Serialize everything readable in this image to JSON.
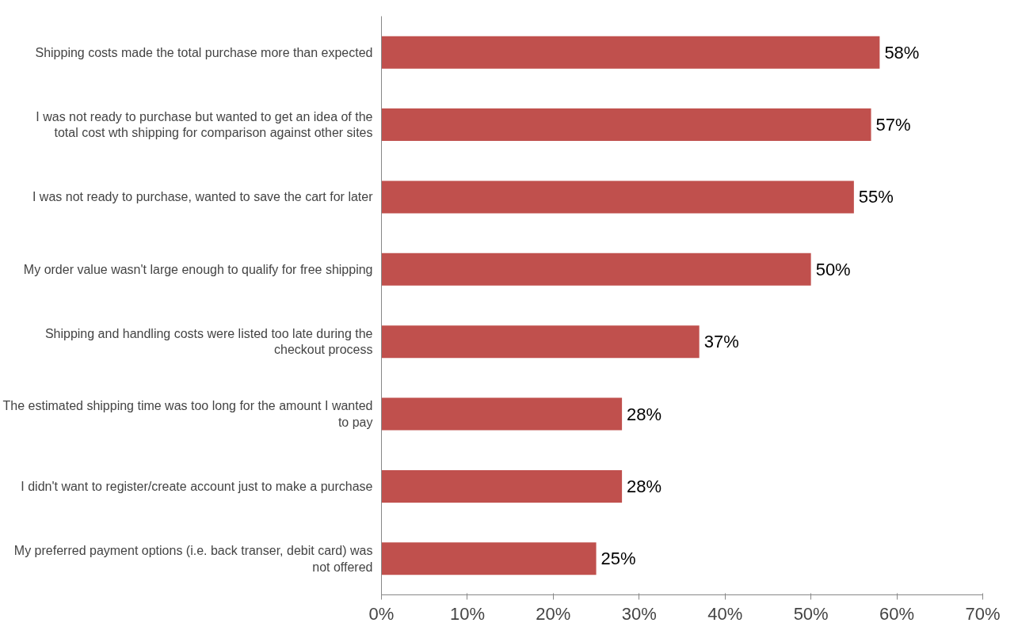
{
  "chart_data": {
    "type": "bar",
    "orientation": "horizontal",
    "categories": [
      "Shipping costs made the total purchase more than expected",
      "I was not ready to purchase but wanted to get an idea of the total cost wth shipping for comparison against other sites",
      "I was not ready to purchase, wanted to save the cart for later",
      "My order value wasn't large enough to qualify for free shipping",
      "Shipping and handling costs were listed too late during the checkout process",
      "The estimated shipping time was too long for the amount I wanted to pay",
      "I didn't want to register/create account just to make a purchase",
      "My preferred payment options (i.e. back transer, debit card) was not offered"
    ],
    "values": [
      58,
      57,
      55,
      50,
      37,
      28,
      28,
      25
    ],
    "value_labels": [
      "58%",
      "57%",
      "55%",
      "50%",
      "37%",
      "28%",
      "28%",
      "25%"
    ],
    "color": "#c0504d",
    "xlim": [
      0,
      70
    ],
    "xticks": [
      {
        "value": 0,
        "label": "0%"
      },
      {
        "value": 10,
        "label": "10%"
      },
      {
        "value": 20,
        "label": "20%"
      },
      {
        "value": 30,
        "label": "30%"
      },
      {
        "value": 40,
        "label": "40%"
      },
      {
        "value": 50,
        "label": "50%"
      },
      {
        "value": 60,
        "label": "60%"
      },
      {
        "value": 70,
        "label": "70%"
      }
    ],
    "grid": false
  }
}
